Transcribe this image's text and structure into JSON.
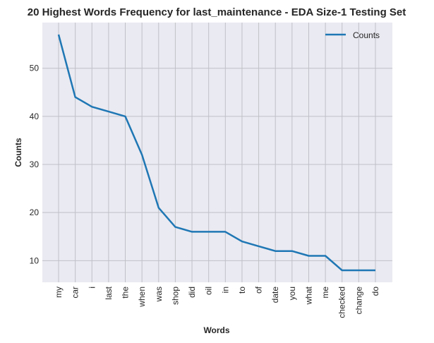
{
  "chart_data": {
    "type": "line",
    "title": "20 Highest Words Frequency for last_maintenance - EDA Size-1 Testing Set",
    "xlabel": "Words",
    "ylabel": "Counts",
    "categories": [
      "my",
      "car",
      "i",
      "last",
      "the",
      "when",
      "was",
      "shop",
      "did",
      "oil",
      "in",
      "to",
      "of",
      "date",
      "you",
      "what",
      "me",
      "checked",
      "change",
      "do"
    ],
    "series": [
      {
        "name": "Counts",
        "values": [
          57,
          44,
          42,
          41,
          40,
          32,
          21,
          17,
          16,
          16,
          16,
          14,
          13,
          12,
          12,
          11,
          11,
          8,
          8,
          8
        ],
        "color": "#1f77b4"
      }
    ],
    "yticks": [
      10,
      20,
      30,
      40,
      50
    ],
    "ylim": [
      5.5,
      59.5
    ],
    "grid": true,
    "legend_position": "top-right",
    "background": "#eaeaf2"
  }
}
